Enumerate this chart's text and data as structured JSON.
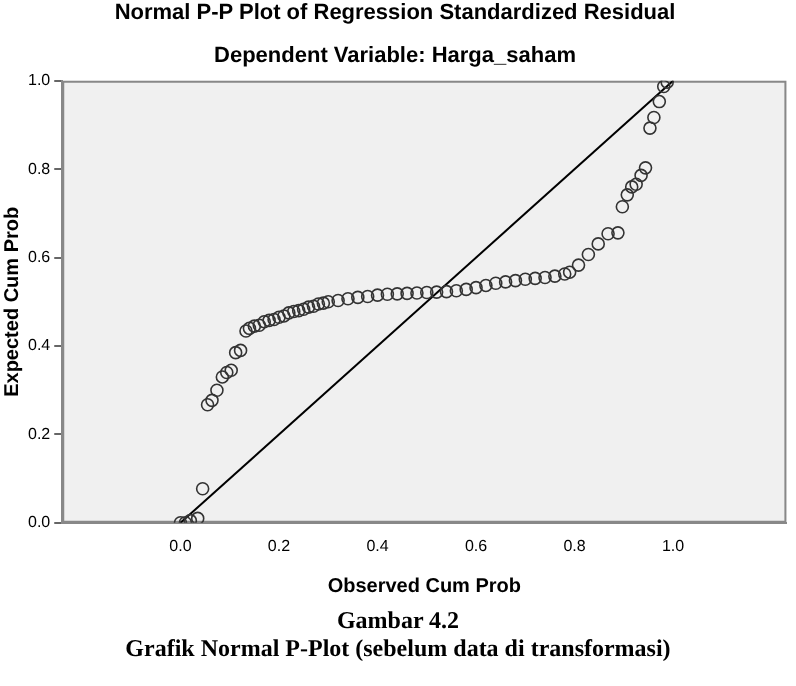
{
  "chart_data": {
    "type": "scatter",
    "title": "Normal P-P Plot of Regression Standardized Residual",
    "subtitle": "Dependent Variable: Harga_saham",
    "xlabel": "Observed Cum Prob",
    "ylabel": "Expected Cum Prob",
    "annotations": [
      "Gambar 4.2",
      "Grafik Normal P-Plot (sebelum data di transformasi)"
    ],
    "xlim": [
      -0.24,
      1.23
    ],
    "ylim": [
      0,
      1
    ],
    "xticks": [
      {
        "value": 0,
        "label": "0.0"
      },
      {
        "value": 0.2,
        "label": "0.2"
      },
      {
        "value": 0.4,
        "label": "0.4"
      },
      {
        "value": 0.6,
        "label": "0.6"
      },
      {
        "value": 0.8,
        "label": "0.8"
      },
      {
        "value": 1,
        "label": "1.0"
      }
    ],
    "yticks": [
      {
        "value": 0,
        "label": "0.0"
      },
      {
        "value": 0.2,
        "label": "0.2"
      },
      {
        "value": 0.4,
        "label": "0.4"
      },
      {
        "value": 0.6,
        "label": "0.6"
      },
      {
        "value": 0.8,
        "label": "0.8"
      },
      {
        "value": 1,
        "label": "1.0"
      }
    ],
    "grid": false,
    "legend": false,
    "marker": "circle",
    "series": [
      {
        "type": "scatter",
        "color": "#333333",
        "x": [
          0.0,
          0.01,
          0.02,
          0.035,
          0.045,
          0.055,
          0.064,
          0.074,
          0.085,
          0.094,
          0.103,
          0.112,
          0.122,
          0.133,
          0.14,
          0.15,
          0.16,
          0.17,
          0.18,
          0.19,
          0.2,
          0.21,
          0.22,
          0.23,
          0.24,
          0.25,
          0.26,
          0.27,
          0.28,
          0.29,
          0.3,
          0.32,
          0.34,
          0.36,
          0.38,
          0.4,
          0.42,
          0.44,
          0.46,
          0.48,
          0.5,
          0.52,
          0.54,
          0.56,
          0.58,
          0.6,
          0.62,
          0.64,
          0.66,
          0.68,
          0.7,
          0.72,
          0.74,
          0.76,
          0.78,
          0.79,
          0.808,
          0.828,
          0.848,
          0.868,
          0.888,
          0.897,
          0.907,
          0.916,
          0.925,
          0.935,
          0.944,
          0.953,
          0.961,
          0.972,
          0.981,
          0.988
        ],
        "values": [
          0.0,
          0.0,
          0.005,
          0.01,
          0.077,
          0.267,
          0.277,
          0.3,
          0.33,
          0.34,
          0.345,
          0.385,
          0.39,
          0.434,
          0.44,
          0.445,
          0.447,
          0.455,
          0.458,
          0.46,
          0.465,
          0.468,
          0.475,
          0.478,
          0.48,
          0.483,
          0.488,
          0.49,
          0.495,
          0.497,
          0.5,
          0.503,
          0.507,
          0.51,
          0.512,
          0.515,
          0.517,
          0.518,
          0.519,
          0.52,
          0.521,
          0.522,
          0.523,
          0.525,
          0.528,
          0.532,
          0.537,
          0.542,
          0.545,
          0.548,
          0.551,
          0.553,
          0.555,
          0.558,
          0.563,
          0.567,
          0.583,
          0.607,
          0.631,
          0.654,
          0.656,
          0.715,
          0.742,
          0.76,
          0.766,
          0.786,
          0.803,
          0.893,
          0.917,
          0.953,
          0.987,
          0.997
        ]
      },
      {
        "type": "line",
        "color": "#000000",
        "x": [
          0,
          1
        ],
        "values": [
          0,
          1
        ],
        "marker": "none"
      }
    ]
  }
}
